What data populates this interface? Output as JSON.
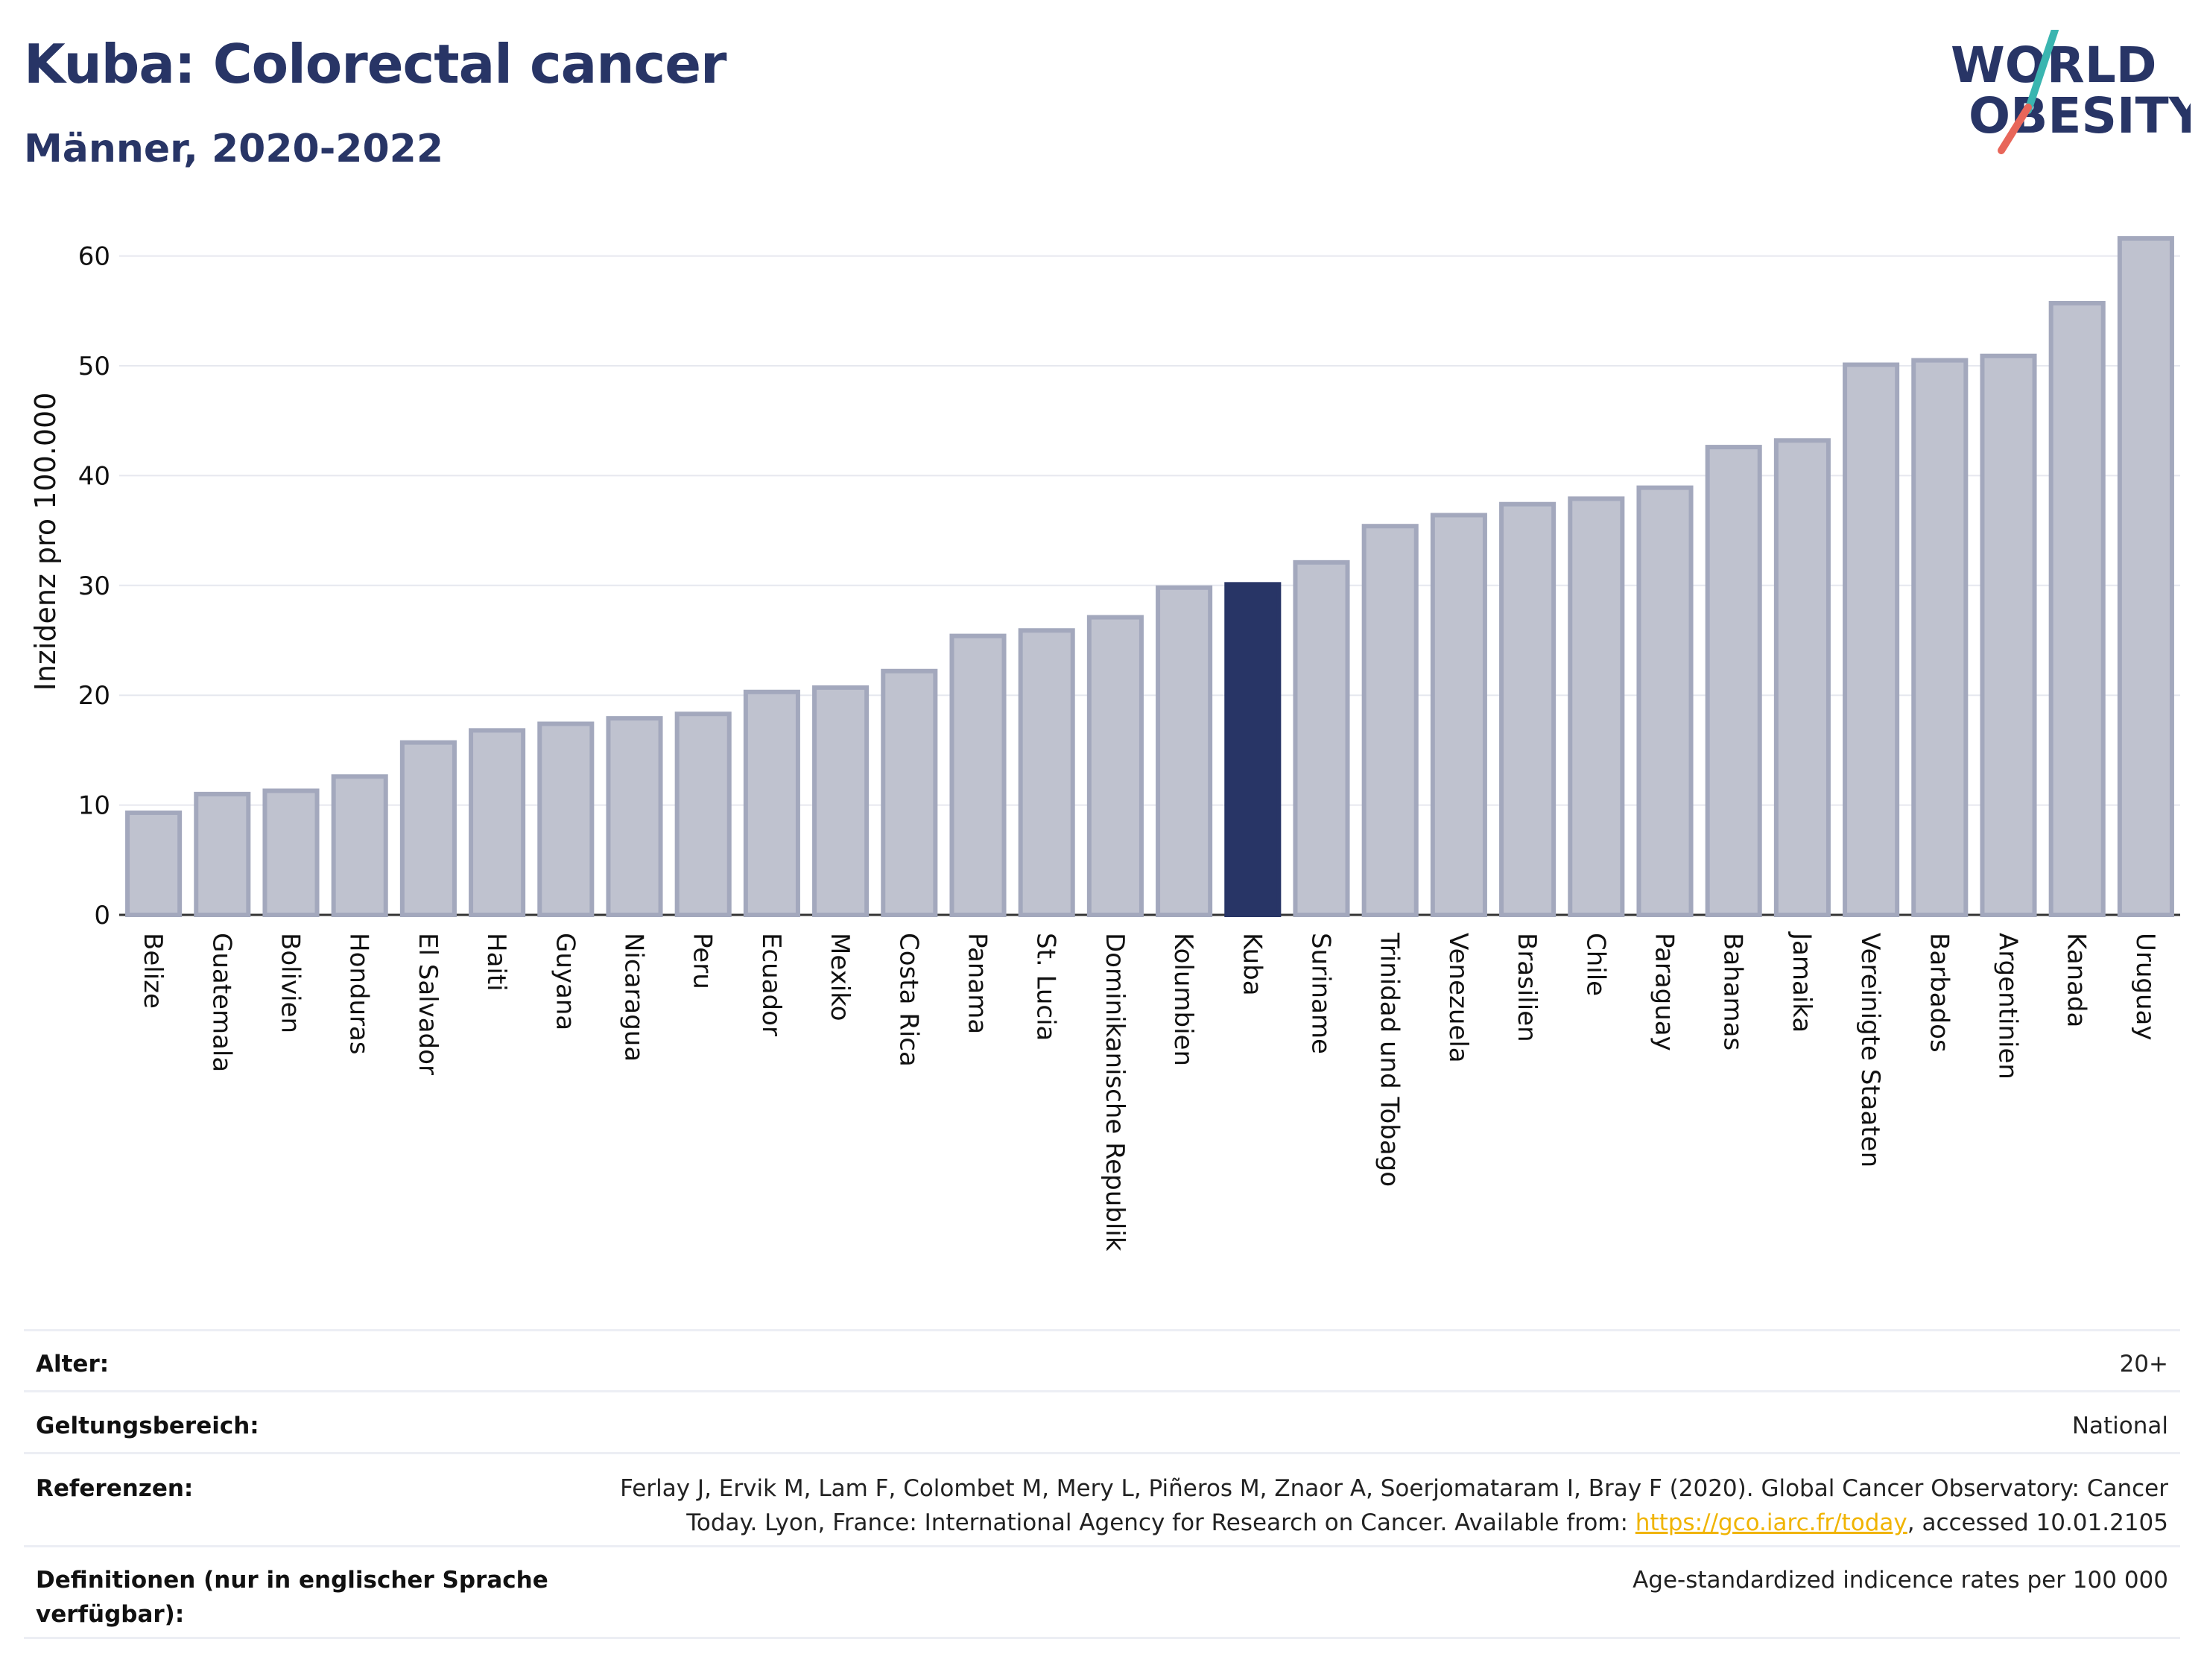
{
  "header": {
    "title": "Kuba: Colorectal cancer",
    "subtitle": "Männer, 2020-2022",
    "logo_line1": "WORLD",
    "logo_line2": "OBESITY"
  },
  "colors": {
    "title": "#283566",
    "bar_default_fill": "#bfc2cf",
    "bar_default_stroke": "#a3a8bd",
    "bar_highlight": "#283566",
    "grid": "#e6e8ef",
    "logo_teal": "#3ab5b0",
    "logo_coral": "#e8665a",
    "link": "#f0b400"
  },
  "chart_data": {
    "type": "bar",
    "ylabel": "Inzidenz pro 100.000",
    "xlabel": "",
    "ylim": [
      0,
      65
    ],
    "yticks": [
      0,
      10,
      20,
      30,
      40,
      50,
      60
    ],
    "grid": true,
    "highlight": "Kuba",
    "categories": [
      "Belize",
      "Guatemala",
      "Bolivien",
      "Honduras",
      "El Salvador",
      "Haiti",
      "Guyana",
      "Nicaragua",
      "Peru",
      "Ecuador",
      "Mexiko",
      "Costa Rica",
      "Panama",
      "St. Lucia",
      "Dominikanische Republik",
      "Kolumbien",
      "Kuba",
      "Suriname",
      "Trinidad und Tobago",
      "Venezuela",
      "Brasilien",
      "Chile",
      "Paraguay",
      "Bahamas",
      "Jamaika",
      "Vereinigte Staaten",
      "Barbados",
      "Argentinien",
      "Kanada",
      "Uruguay"
    ],
    "values": [
      9.3,
      11.0,
      11.3,
      12.6,
      15.7,
      16.8,
      17.4,
      17.9,
      18.3,
      20.3,
      20.7,
      22.2,
      25.4,
      25.9,
      27.1,
      29.8,
      30.1,
      32.1,
      35.4,
      36.4,
      37.4,
      37.9,
      38.9,
      42.6,
      43.2,
      50.1,
      50.5,
      50.9,
      55.7,
      61.6
    ]
  },
  "meta": {
    "age_label": "Alter:",
    "age_value": "20+",
    "scope_label": "Geltungsbereich:",
    "scope_value": "National",
    "ref_label": "Referenzen:",
    "ref_line1": "Ferlay J, Ervik M, Lam F, Colombet M, Mery L, Piñeros M, Znaor A, Soerjomataram I, Bray F (2020). Global Cancer Observatory: Cancer",
    "ref_line2_pre": "Today. Lyon, France: International Agency for Research on Cancer. Available from: ",
    "ref_link": "https://gco.iarc.fr/today",
    "ref_line2_post": ", accessed 10.01.2105",
    "def_label_line1": "Definitionen (nur in englischer Sprache",
    "def_label_line2": "verfügbar):",
    "def_value": "Age-standardized indicence rates per 100 000"
  }
}
